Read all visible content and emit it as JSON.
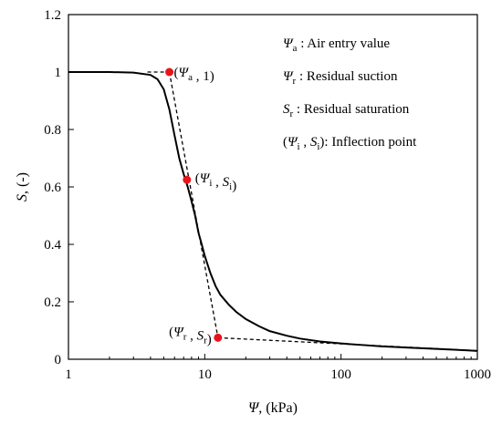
{
  "chart_data": {
    "type": "line",
    "xscale": "log",
    "xlim": [
      1,
      1000
    ],
    "ylim": [
      0,
      1.2
    ],
    "grid": false,
    "xlabel": {
      "sym": "Ψ",
      "rest": ", (kPa)"
    },
    "ylabel": {
      "sym": "S",
      "rest": ", (-)"
    },
    "x_ticks": [
      1,
      10,
      100,
      1000
    ],
    "x_tick_labels": [
      "1",
      "10",
      "100",
      "1000"
    ],
    "y_ticks": [
      0,
      0.2,
      0.4,
      0.6,
      0.8,
      1.0,
      1.2
    ],
    "y_tick_labels": [
      "0",
      "0.2",
      "0.4",
      "0.6",
      "0.8",
      "1",
      "1.2"
    ],
    "curve": {
      "x": [
        1,
        2,
        3,
        4,
        4.5,
        5,
        5.5,
        6,
        6.5,
        7,
        7.5,
        8,
        8.5,
        9,
        9.5,
        10,
        11,
        12,
        13,
        15,
        17,
        20,
        25,
        30,
        40,
        50,
        70,
        100,
        150,
        200,
        300,
        500,
        700,
        1000
      ],
      "y": [
        1.0,
        1.0,
        0.998,
        0.99,
        0.975,
        0.94,
        0.87,
        0.78,
        0.7,
        0.645,
        0.6,
        0.55,
        0.5,
        0.44,
        0.4,
        0.36,
        0.3,
        0.255,
        0.225,
        0.19,
        0.165,
        0.14,
        0.115,
        0.098,
        0.082,
        0.072,
        0.062,
        0.055,
        0.049,
        0.045,
        0.041,
        0.036,
        0.033,
        0.029
      ]
    },
    "tangent_lines": [
      {
        "x": [
          3.8,
          5.5
        ],
        "y": [
          1.0,
          1.0
        ]
      },
      {
        "x": [
          5.5,
          12.5
        ],
        "y": [
          1.0,
          0.075
        ]
      },
      {
        "x": [
          12.5,
          1000
        ],
        "y": [
          0.075,
          0.03
        ]
      }
    ],
    "points": [
      {
        "name": "air-entry",
        "x": 5.5,
        "y": 1.0,
        "label": [
          "(",
          "Ψ",
          "a",
          " , 1)"
        ]
      },
      {
        "name": "inflection",
        "x": 7.4,
        "y": 0.625,
        "label": [
          "(",
          "Ψ",
          "i",
          " , ",
          "S",
          "i",
          ")"
        ]
      },
      {
        "name": "residual",
        "x": 12.5,
        "y": 0.075,
        "label": [
          "(",
          "Ψ",
          "r",
          " , ",
          "S",
          "r",
          ")"
        ]
      }
    ],
    "point_color": "#e8141b",
    "legend": {
      "placement": "top-right",
      "items": [
        {
          "sym": "Ψ",
          "sub": "a",
          "sep": " : ",
          "text": "Air entry value"
        },
        {
          "sym": "Ψ",
          "sub": "r",
          "sep": " : ",
          "text": "Residual suction"
        },
        {
          "sym": "S",
          "sub": "r",
          "sep": " : ",
          "text": "Residual saturation"
        },
        {
          "paren": true,
          "sym1": "Ψ",
          "sub1": "i",
          "sym2": "S",
          "sub2": "i",
          "text": ": Inflection point"
        }
      ]
    }
  }
}
